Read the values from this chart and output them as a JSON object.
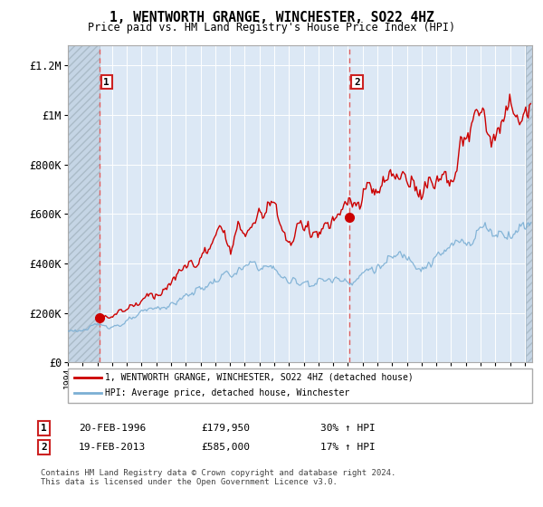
{
  "title": "1, WENTWORTH GRANGE, WINCHESTER, SO22 4HZ",
  "subtitle": "Price paid vs. HM Land Registry's House Price Index (HPI)",
  "ylabel_ticks": [
    "£0",
    "£200K",
    "£400K",
    "£600K",
    "£800K",
    "£1M",
    "£1.2M"
  ],
  "ytick_values": [
    0,
    200000,
    400000,
    600000,
    800000,
    1000000,
    1200000
  ],
  "ylim": [
    0,
    1280000
  ],
  "xlim_start": 1994.0,
  "xlim_end": 2025.5,
  "sale1_x": 1996.12,
  "sale1_y": 179950,
  "sale1_date": "20-FEB-1996",
  "sale1_price": "£179,950",
  "sale1_hpi": "30% ↑ HPI",
  "sale2_x": 2013.12,
  "sale2_y": 585000,
  "sale2_date": "19-FEB-2013",
  "sale2_price": "£585,000",
  "sale2_hpi": "17% ↑ HPI",
  "line_color_red": "#cc0000",
  "line_color_blue": "#7bafd4",
  "vline_color": "#e06060",
  "background_plot": "#dce8f5",
  "legend_line1": "1, WENTWORTH GRANGE, WINCHESTER, SO22 4HZ (detached house)",
  "legend_line2": "HPI: Average price, detached house, Winchester",
  "footer": "Contains HM Land Registry data © Crown copyright and database right 2024.\nThis data is licensed under the Open Government Licence v3.0."
}
